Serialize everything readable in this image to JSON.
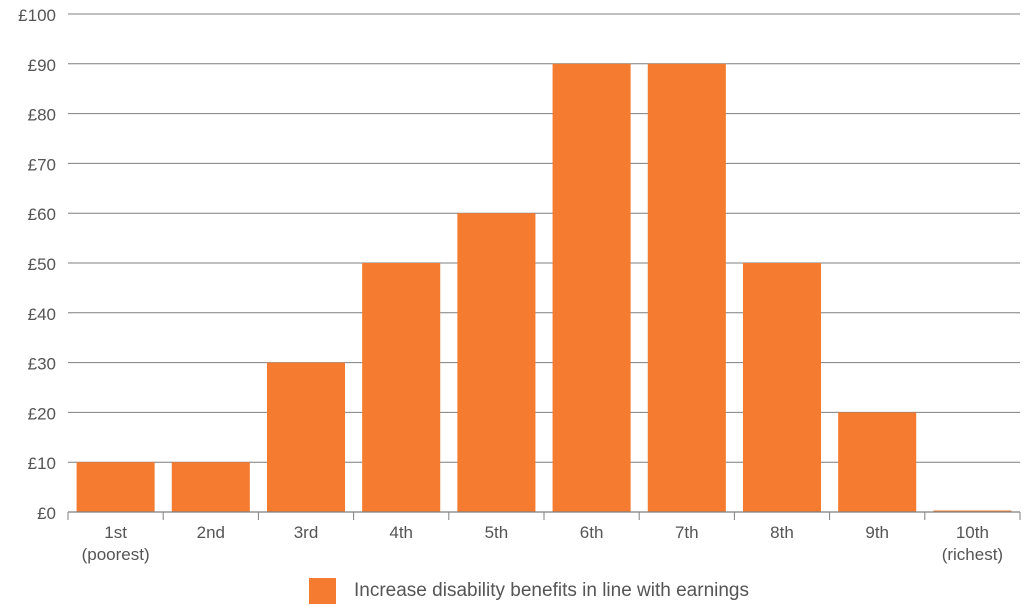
{
  "chart_data": {
    "type": "bar",
    "title": "",
    "xlabel": "",
    "ylabel": "",
    "categories": [
      [
        "1st",
        "(poorest)"
      ],
      [
        "2nd"
      ],
      [
        "3rd"
      ],
      [
        "4th"
      ],
      [
        "5th"
      ],
      [
        "6th"
      ],
      [
        "7th"
      ],
      [
        "8th"
      ],
      [
        "9th"
      ],
      [
        "10th",
        "(richest)"
      ]
    ],
    "series": [
      {
        "name": "Increase disability benefits in line with earnings",
        "color": "#F47B30",
        "values": [
          10,
          10,
          30,
          50,
          60,
          90,
          90,
          50,
          20,
          0
        ]
      }
    ],
    "ylim": [
      0,
      100
    ],
    "yticks": [
      0,
      10,
      20,
      30,
      40,
      50,
      60,
      70,
      80,
      90,
      100
    ],
    "ytick_labels": [
      "£0",
      "£10",
      "£20",
      "£30",
      "£40",
      "£50",
      "£60",
      "£70",
      "£80",
      "£90",
      "£100"
    ],
    "grid": "horizontal",
    "legend_position": "bottom-center",
    "colors": {
      "bar": "#F47B30",
      "grid": "#7f7f7f",
      "text": "#555555"
    }
  }
}
